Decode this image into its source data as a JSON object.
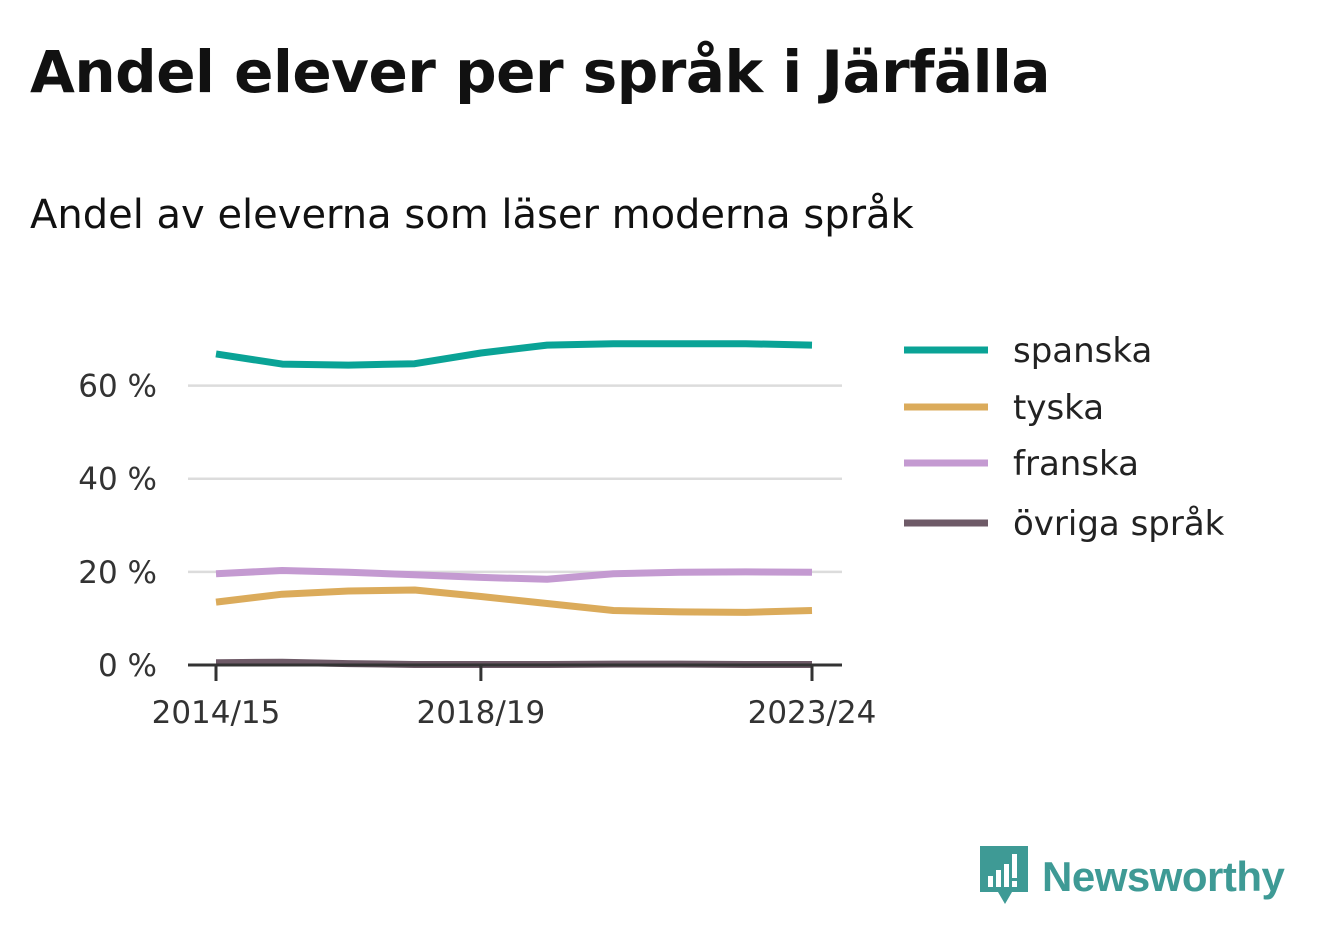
{
  "title": "Andel elever per språk i Järfälla",
  "subtitle": "Andel av eleverna som läser moderna språk",
  "brand": {
    "name": "Newsworthy",
    "icon": "newsworthy-logo-icon",
    "color": "#3e9a95"
  },
  "chart_data": {
    "type": "line",
    "x": [
      "2014/15",
      "2015/16",
      "2016/17",
      "2017/18",
      "2018/19",
      "2019/20",
      "2020/21",
      "2021/22",
      "2022/23",
      "2023/24"
    ],
    "x_tick_labels": [
      "2014/15",
      "2018/19",
      "2023/24"
    ],
    "y_tick_labels": [
      "0 %",
      "20 %",
      "40 %",
      "60 %"
    ],
    "y_ticks": [
      0,
      20,
      40,
      60
    ],
    "ylim": [
      0,
      70
    ],
    "grid": true,
    "legend_position": "right",
    "series": [
      {
        "name": "spanska",
        "color": "#0aa396",
        "values": [
          66.8,
          64.6,
          64.4,
          64.7,
          67.0,
          68.7,
          69.0,
          69.0,
          69.0,
          68.7
        ]
      },
      {
        "name": "tyska",
        "color": "#dbab5b",
        "values": [
          13.5,
          15.2,
          15.9,
          16.1,
          14.7,
          13.2,
          11.7,
          11.4,
          11.3,
          11.7
        ]
      },
      {
        "name": "franska",
        "color": "#c49ad1",
        "values": [
          19.6,
          20.3,
          19.9,
          19.4,
          18.8,
          18.4,
          19.6,
          19.9,
          20.0,
          19.9
        ]
      },
      {
        "name": "övriga språk",
        "color": "#6e5a67",
        "values": [
          0.5,
          0.6,
          0.3,
          0.1,
          0.1,
          0.1,
          0.2,
          0.2,
          0.1,
          0.1
        ]
      }
    ]
  }
}
